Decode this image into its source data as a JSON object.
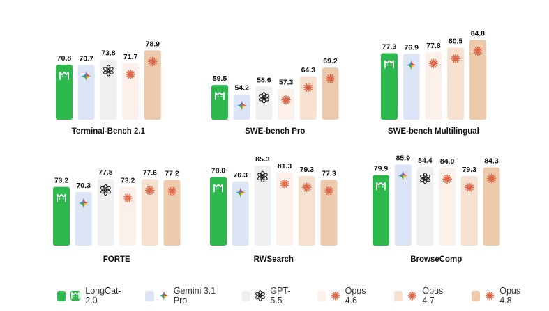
{
  "colors": {
    "LongCat-2.0": "#2db84e",
    "Gemini 3.1 Pro": "#dbe5f6",
    "GPT-5.5": "#efefef",
    "Opus 4.6": "#fbf1ea",
    "Opus 4.7": "#f6e1d1",
    "Opus 4.8": "#eecaac"
  },
  "icons": {
    "LongCat-2.0": "longcat-icon",
    "Gemini 3.1 Pro": "gemini-icon",
    "GPT-5.5": "openai-icon",
    "Opus 4.6": "anthropic-icon",
    "Opus 4.7": "anthropic-icon",
    "Opus 4.8": "anthropic-icon"
  },
  "chart_data": [
    {
      "type": "bar",
      "title": "Terminal-Bench 2.1",
      "series": [
        {
          "name": "LongCat-2.0",
          "values": [
            70.8
          ]
        },
        {
          "name": "Gemini 3.1 Pro",
          "values": [
            70.7
          ]
        },
        {
          "name": "GPT-5.5",
          "values": [
            73.8
          ]
        },
        {
          "name": "Opus 4.6",
          "values": [
            71.7
          ]
        },
        {
          "name": "Opus 4.8",
          "values": [
            78.9
          ]
        }
      ]
    },
    {
      "type": "bar",
      "title": "SWE-bench Pro",
      "series": [
        {
          "name": "LongCat-2.0",
          "values": [
            59.5
          ]
        },
        {
          "name": "Gemini 3.1 Pro",
          "values": [
            54.2
          ]
        },
        {
          "name": "GPT-5.5",
          "values": [
            58.6
          ]
        },
        {
          "name": "Opus 4.6",
          "values": [
            57.3
          ]
        },
        {
          "name": "Opus 4.7",
          "values": [
            64.3
          ]
        },
        {
          "name": "Opus 4.8",
          "values": [
            69.2
          ]
        }
      ]
    },
    {
      "type": "bar",
      "title": "SWE-bench Multilingual",
      "series": [
        {
          "name": "LongCat-2.0",
          "values": [
            77.3
          ]
        },
        {
          "name": "Gemini 3.1 Pro",
          "values": [
            76.9
          ]
        },
        {
          "name": "Opus 4.6",
          "values": [
            77.8
          ]
        },
        {
          "name": "Opus 4.7",
          "values": [
            80.5
          ]
        },
        {
          "name": "Opus 4.8",
          "values": [
            84.8
          ]
        }
      ]
    },
    {
      "type": "bar",
      "title": "FORTE",
      "series": [
        {
          "name": "LongCat-2.0",
          "values": [
            73.2
          ]
        },
        {
          "name": "Gemini 3.1 Pro",
          "values": [
            70.3
          ]
        },
        {
          "name": "GPT-5.5",
          "values": [
            77.8
          ]
        },
        {
          "name": "Opus 4.6",
          "values": [
            73.2
          ]
        },
        {
          "name": "Opus 4.7",
          "values": [
            77.6
          ]
        },
        {
          "name": "Opus 4.8",
          "values": [
            77.2
          ]
        }
      ]
    },
    {
      "type": "bar",
      "title": "RWSearch",
      "series": [
        {
          "name": "LongCat-2.0",
          "values": [
            78.8
          ]
        },
        {
          "name": "Gemini 3.1 Pro",
          "values": [
            76.3
          ]
        },
        {
          "name": "GPT-5.5",
          "values": [
            85.3
          ]
        },
        {
          "name": "Opus 4.6",
          "values": [
            81.3
          ]
        },
        {
          "name": "Opus 4.7",
          "values": [
            79.3
          ]
        },
        {
          "name": "Opus 4.8",
          "values": [
            77.3
          ]
        }
      ]
    },
    {
      "type": "bar",
      "title": "BrowseComp",
      "series": [
        {
          "name": "LongCat-2.0",
          "values": [
            79.9
          ]
        },
        {
          "name": "Gemini 3.1 Pro",
          "values": [
            85.9
          ]
        },
        {
          "name": "GPT-5.5",
          "values": [
            84.4
          ]
        },
        {
          "name": "Opus 4.6",
          "values": [
            84.0
          ]
        },
        {
          "name": "Opus 4.7",
          "values": [
            79.3
          ]
        },
        {
          "name": "Opus 4.8",
          "values": [
            84.3
          ]
        }
      ]
    }
  ],
  "legend": [
    {
      "name": "LongCat-2.0",
      "icon": "longcat-icon"
    },
    {
      "name": "Gemini 3.1 Pro",
      "icon": "gemini-icon"
    },
    {
      "name": "GPT-5.5",
      "icon": "openai-icon"
    },
    {
      "name": "Opus 4.6",
      "icon": "anthropic-icon"
    },
    {
      "name": "Opus 4.7",
      "icon": "anthropic-icon"
    },
    {
      "name": "Opus 4.8",
      "icon": "anthropic-icon"
    }
  ]
}
